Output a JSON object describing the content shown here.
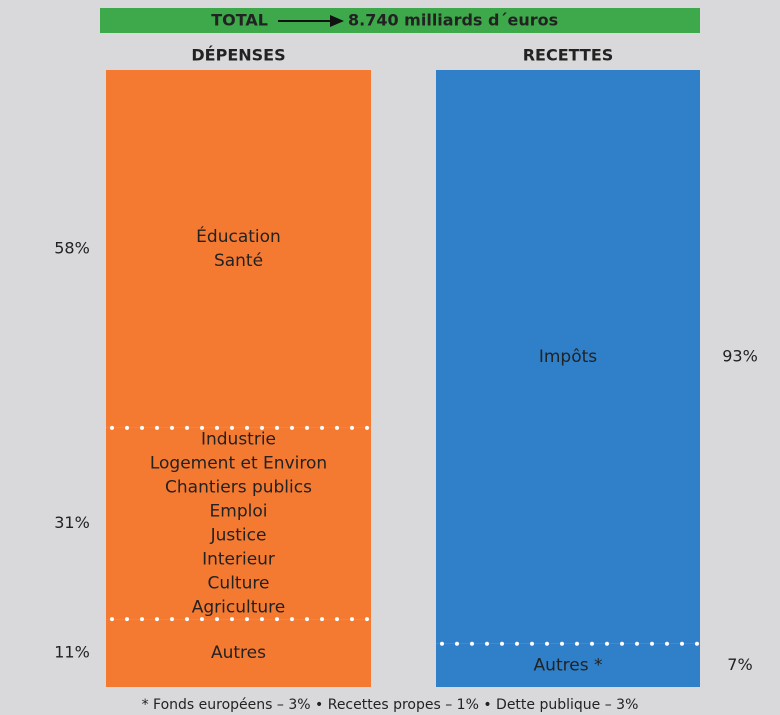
{
  "chart_data": {
    "type": "stacked_column",
    "title_prefix": "TOTAL",
    "title": "8.740 milliards d´euros",
    "ylim": [
      0,
      100
    ],
    "columns": [
      {
        "name": "DÉPENSES",
        "color": "#f47a32",
        "values": [
          58,
          31,
          11
        ],
        "value_labels": [
          "58%",
          "31%",
          "11%"
        ],
        "segment_labels": [
          [
            "Éducation",
            "Santé"
          ],
          [
            "Industrie",
            "Logement et Environ",
            "Chantiers publics",
            "Emploi",
            "Justice",
            "Interieur",
            "Culture",
            "Agriculture"
          ],
          [
            "Autres"
          ]
        ]
      },
      {
        "name": "RECETTES",
        "color": "#2f80c8",
        "values": [
          93,
          7
        ],
        "value_labels": [
          "93%",
          "7%"
        ],
        "segment_labels": [
          [
            "Impôts"
          ],
          [
            "Autres *"
          ]
        ]
      }
    ],
    "footnote": "* Fonds européens – 3% • Recettes propes – 1% • Dette publique – 3%"
  }
}
